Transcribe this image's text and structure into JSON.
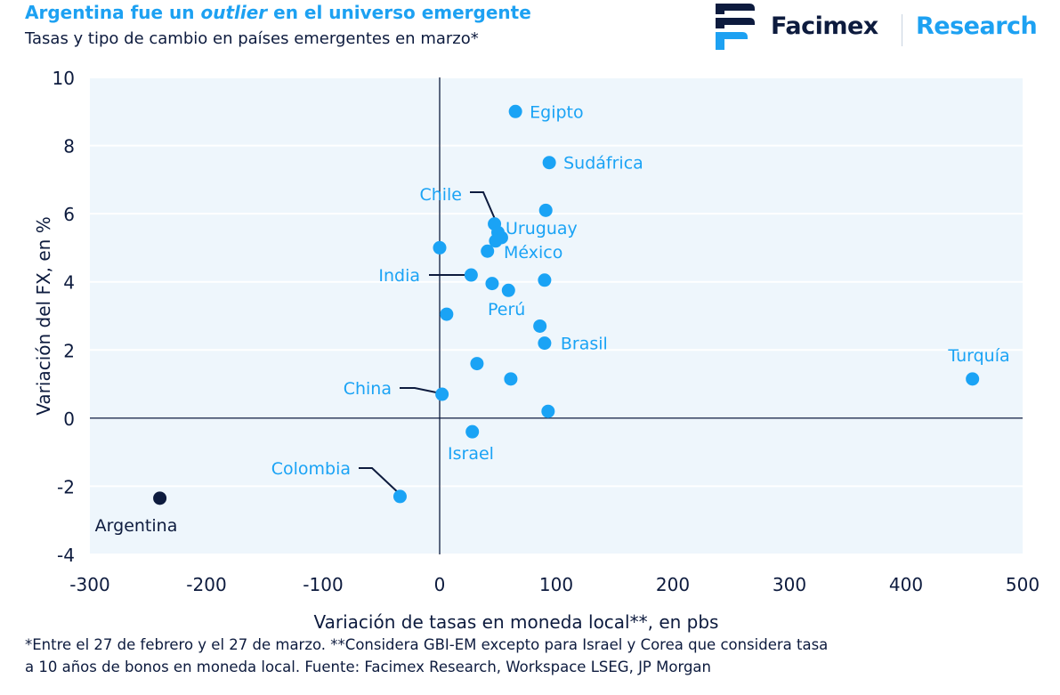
{
  "header": {
    "title_before": "Argentina fue un ",
    "title_italic": "outlier",
    "title_after": " en el universo emergente",
    "subtitle": "Tasas y tipo de cambio en países emergentes en marzo*"
  },
  "brand": {
    "name": "Facimex",
    "division": "Research"
  },
  "footnote": {
    "line1": "*Entre el 27 de febrero y el 27 de marzo. **Considera GBI-EM excepto para Israel y Corea que considera tasa",
    "line2": "a 10 años de bonos en moneda local. Fuente: Facimex Research, Workspace LSEG, JP Morgan"
  },
  "colors": {
    "accent": "#1da1f2",
    "dark": "#0d1b3e",
    "point": "#1aa3f5",
    "argentina": "#0d1b3e",
    "plot_bg": "#eef6fc"
  },
  "chart_data": {
    "type": "scatter",
    "xlabel": "Variación de tasas en moneda local**, en pbs",
    "ylabel": "Variación del FX, en %",
    "xlim": [
      -300,
      500
    ],
    "ylim": [
      -4,
      10
    ],
    "xticks": [
      -300,
      -200,
      -100,
      0,
      100,
      200,
      300,
      400,
      500
    ],
    "yticks": [
      -4,
      -2,
      0,
      2,
      4,
      6,
      8,
      10
    ],
    "grid": true,
    "points": [
      {
        "x": 65,
        "y": 9.0,
        "label": "Egipto",
        "highlight": false
      },
      {
        "x": 94,
        "y": 7.5,
        "label": "Sudáfrica",
        "highlight": false
      },
      {
        "x": 91,
        "y": 6.1,
        "label": "",
        "highlight": false
      },
      {
        "x": 47,
        "y": 5.7,
        "label": "Chile",
        "highlight": false
      },
      {
        "x": 50,
        "y": 5.45,
        "label": "",
        "highlight": false
      },
      {
        "x": 53,
        "y": 5.3,
        "label": "Uruguay",
        "highlight": false
      },
      {
        "x": 48,
        "y": 5.2,
        "label": "",
        "highlight": false
      },
      {
        "x": 0,
        "y": 5.0,
        "label": "",
        "highlight": false
      },
      {
        "x": 41,
        "y": 4.9,
        "label": "México",
        "highlight": false
      },
      {
        "x": 27,
        "y": 4.2,
        "label": "India",
        "highlight": false
      },
      {
        "x": 90,
        "y": 4.05,
        "label": "",
        "highlight": false
      },
      {
        "x": 45,
        "y": 3.95,
        "label": "",
        "highlight": false
      },
      {
        "x": 59,
        "y": 3.75,
        "label": "Perú",
        "highlight": false
      },
      {
        "x": 6,
        "y": 3.05,
        "label": "",
        "highlight": false
      },
      {
        "x": 86,
        "y": 2.7,
        "label": "",
        "highlight": false
      },
      {
        "x": 90,
        "y": 2.2,
        "label": "Brasil",
        "highlight": false
      },
      {
        "x": 32,
        "y": 1.6,
        "label": "",
        "highlight": false
      },
      {
        "x": 457,
        "y": 1.15,
        "label": "Turquía",
        "highlight": false
      },
      {
        "x": 61,
        "y": 1.15,
        "label": "",
        "highlight": false
      },
      {
        "x": 2,
        "y": 0.7,
        "label": "China",
        "highlight": false
      },
      {
        "x": 93,
        "y": 0.2,
        "label": "",
        "highlight": false
      },
      {
        "x": 28,
        "y": -0.4,
        "label": "Israel",
        "highlight": false
      },
      {
        "x": -34,
        "y": -2.3,
        "label": "Colombia",
        "highlight": false
      },
      {
        "x": -240,
        "y": -2.35,
        "label": "Argentina",
        "highlight": true
      }
    ]
  }
}
